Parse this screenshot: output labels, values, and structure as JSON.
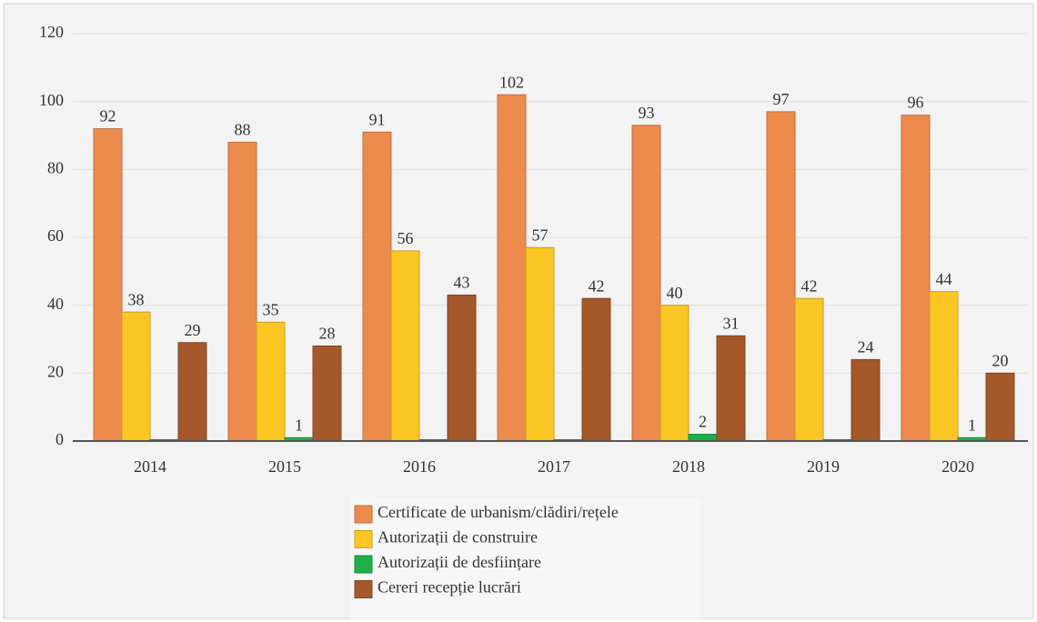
{
  "chart_data": {
    "type": "bar",
    "categories": [
      "2014",
      "2015",
      "2016",
      "2017",
      "2018",
      "2019",
      "2020"
    ],
    "series": [
      {
        "name": "Certificate de urbanism/clădiri/rețele",
        "color": "#ed8b4c",
        "values": [
          92,
          88,
          91,
          102,
          93,
          97,
          96
        ]
      },
      {
        "name": "Autorizații de construire",
        "color": "#fcc624",
        "values": [
          38,
          35,
          56,
          57,
          40,
          42,
          44
        ]
      },
      {
        "name": "Autorizații de desființare",
        "color": "#1faf4b",
        "values": [
          0,
          1,
          0,
          0,
          2,
          0,
          1
        ],
        "value_labels": [
          null,
          "1",
          null,
          null,
          "2",
          null,
          "1"
        ]
      },
      {
        "name": "Cereri recepție lucrări",
        "color": "#a5582a",
        "values": [
          29,
          28,
          43,
          42,
          31,
          24,
          20
        ]
      }
    ],
    "ylim": [
      0,
      120
    ],
    "yticks": [
      0,
      20,
      40,
      60,
      80,
      100,
      120
    ],
    "grid": true,
    "legend": "bottom"
  }
}
